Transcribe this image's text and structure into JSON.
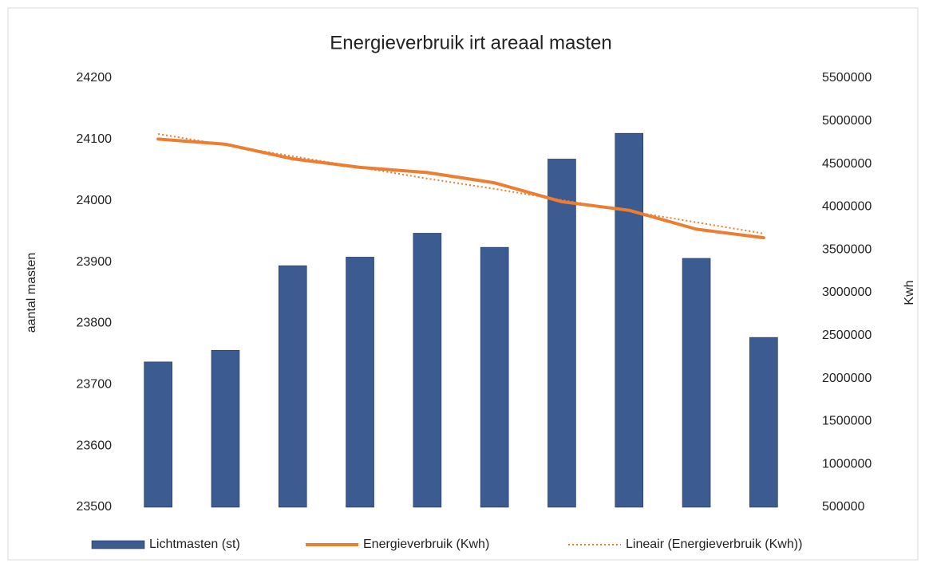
{
  "chart_data": {
    "type": "bar",
    "title": "Energieverbruik irt areaal masten",
    "ylabel": "aantal masten",
    "y2label": "Kwh",
    "categories": [
      null,
      null,
      null,
      null,
      null,
      null,
      null,
      null,
      null,
      null
    ],
    "series": [
      {
        "name": "Lichtmasten (st)",
        "type": "bar",
        "color": "#3b5b91",
        "values": [
          23737,
          23756,
          23894,
          23908,
          23947,
          23924,
          24068,
          24110,
          23906,
          23777
        ]
      },
      {
        "name": "Energieverbruik (Kwh)",
        "type": "line",
        "axis": "y2",
        "color": "#ed7d31",
        "values": [
          4790000,
          4730000,
          4560000,
          4460000,
          4400000,
          4280000,
          4060000,
          3960000,
          3740000,
          3640000
        ]
      },
      {
        "name": "Lineair (Energieverbruik (Kwh))",
        "type": "line",
        "axis": "y2",
        "style": "dotted",
        "color": "#ed7d31",
        "values": [
          4850000,
          4720000,
          4590000,
          4460000,
          4330000,
          4210000,
          4080000,
          3950000,
          3820000,
          3690000
        ]
      }
    ],
    "ylim": [
      23500,
      24200
    ],
    "yticks": [
      23500,
      23600,
      23700,
      23800,
      23900,
      24000,
      24100,
      24200
    ],
    "y2lim": [
      500000,
      5500000
    ],
    "y2ticks": [
      500000,
      1000000,
      1500000,
      2000000,
      2500000,
      3000000,
      3500000,
      4000000,
      4500000,
      5000000,
      5500000
    ],
    "grid": false,
    "legend": "bottom"
  }
}
